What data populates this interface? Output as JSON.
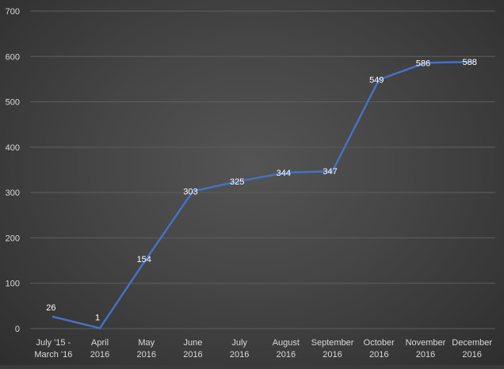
{
  "chart_data": {
    "type": "line",
    "categories": [
      [
        "July '15 -",
        "March '16"
      ],
      [
        "April",
        "2016"
      ],
      [
        "May",
        "2016"
      ],
      [
        "June",
        "2016"
      ],
      [
        "July",
        "2016"
      ],
      [
        "August",
        "2016"
      ],
      [
        "September",
        "2016"
      ],
      [
        "October",
        "2016"
      ],
      [
        "November",
        "2016"
      ],
      [
        "December",
        "2016"
      ]
    ],
    "series": [
      {
        "values": [
          26,
          1,
          154,
          303,
          325,
          344,
          347,
          549,
          586,
          588
        ],
        "color": "#4472c4"
      }
    ],
    "data_labels": [
      "26",
      "1",
      "154",
      "303",
      "325",
      "344",
      "347",
      "549",
      "586",
      "588"
    ],
    "yticks": [
      "0",
      "100",
      "200",
      "300",
      "400",
      "500",
      "600",
      "700"
    ],
    "ylim": [
      0,
      700
    ],
    "grid": true,
    "legend": "none"
  }
}
